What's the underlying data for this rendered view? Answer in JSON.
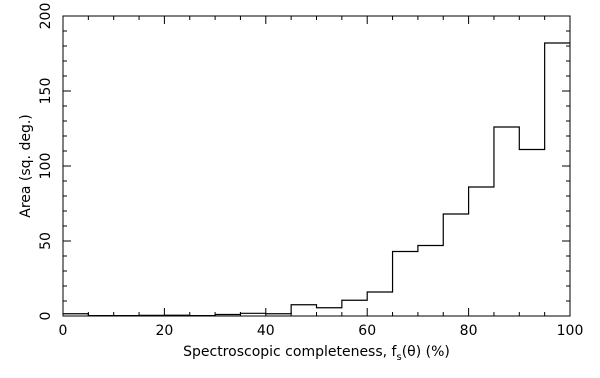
{
  "chart_data": {
    "type": "bar",
    "style": "step-histogram",
    "xlabel": "Spectroscopic completeness, f",
    "xlabel_sub": "s",
    "xlabel_rest": "(θ) (%)",
    "ylabel": "Area (sq. deg.)",
    "xlim": [
      0,
      100
    ],
    "ylim": [
      0,
      200
    ],
    "xticks": [
      "0",
      "20",
      "40",
      "60",
      "80",
      "100"
    ],
    "yticks": [
      "0",
      "50",
      "100",
      "150",
      "200"
    ],
    "bin_edges": [
      0,
      5,
      10,
      15,
      20,
      25,
      30,
      35,
      40,
      45,
      50,
      55,
      60,
      65,
      70,
      75,
      80,
      85,
      90,
      95,
      100
    ],
    "values": [
      1.5,
      0.3,
      0.3,
      0.4,
      0.5,
      0.3,
      1.0,
      1.8,
      1.5,
      7.5,
      5.5,
      10.5,
      16,
      43,
      47,
      68,
      86,
      126,
      111,
      182
    ],
    "grid": false
  }
}
